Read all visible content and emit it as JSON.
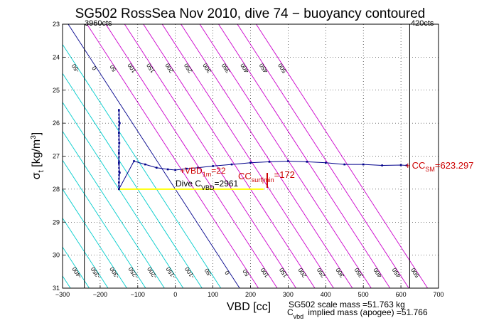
{
  "chart_data": {
    "type": "line",
    "title": "SG502 RossSea Nov 2010, dive 74 − buoyancy contoured",
    "xlabel": "VBD [cc]",
    "ylabel_main": "σ",
    "ylabel_sub": "t",
    "ylabel_units_pre": "[kg/m",
    "ylabel_units_sup": "3",
    "ylabel_units_post": "]",
    "xlim": [
      -300,
      700
    ],
    "ylim": [
      31,
      23
    ],
    "grid": true,
    "xticks": [
      -300,
      -200,
      -100,
      0,
      100,
      200,
      300,
      400,
      500,
      600,
      700
    ],
    "yticks": [
      23,
      24,
      25,
      26,
      27,
      28,
      29,
      30,
      31
    ],
    "buoyancy_contours": {
      "levels": [
        -450,
        -400,
        -350,
        -300,
        -250,
        -200,
        -150,
        -100,
        -50,
        0,
        50,
        100,
        150,
        200,
        250,
        300,
        350,
        400,
        450,
        500
      ],
      "level_labels": [
        "-450",
        "-400",
        "-350",
        "-300",
        "-250",
        "-200",
        "-150",
        "-100",
        "-50",
        "0",
        "50",
        "100",
        "150",
        "200",
        "250",
        "300",
        "350",
        "400",
        "450",
        "500"
      ],
      "zero_color": "#00008b",
      "positive_color": "#cc00cc",
      "negative_color": "#00cccc",
      "cc_per_sigma_unit": 57,
      "anchor_sigma": 28
    },
    "vbd_limits": {
      "min_vbd": -242,
      "max_vbd": 623.297,
      "min_label": "3960cts",
      "max_label": "420cts"
    },
    "series": [
      {
        "color": "#00008b",
        "x": [
          -150,
          -148,
          -150,
          -149,
          -150,
          -150,
          -148,
          -150,
          -150,
          -110,
          -80,
          -50,
          -20,
          0,
          30,
          60,
          100,
          150,
          200,
          250,
          300,
          350,
          400,
          450,
          500,
          550,
          600,
          615
        ],
        "y": [
          25.6,
          26.0,
          26.3,
          26.6,
          26.9,
          27.2,
          27.5,
          27.8,
          28.0,
          27.15,
          27.25,
          27.35,
          27.4,
          27.42,
          27.38,
          27.35,
          27.3,
          27.25,
          27.2,
          27.17,
          27.15,
          27.17,
          27.2,
          27.25,
          27.25,
          27.28,
          27.27,
          27.28
        ]
      },
      {
        "color": "#ffff00",
        "x": [
          -150,
          235
        ],
        "y": [
          28.0,
          28.0
        ]
      }
    ],
    "annotations": {
      "vbd_1m_pre": "VBD",
      "vbd_1m_sub": "1m",
      "vbd_1m_value": "=22",
      "cc_surf_pre": "CC",
      "cc_surf_sub": "surf|min",
      "cc_surf_value": "=172",
      "cc_sm_pre": "CC",
      "cc_sm_sub": "SM",
      "cc_sm_value": "=623.297",
      "dive_c_pre": "Dive C",
      "dive_c_sub": "VBD",
      "dive_c_value": "=2961",
      "scale_mass": "SG502 scale mass =51.763 kg",
      "implied_mass_pre": "C",
      "implied_mass_sub": "vbd",
      "implied_mass_text": "implied mass (apogee) =51.766"
    }
  }
}
